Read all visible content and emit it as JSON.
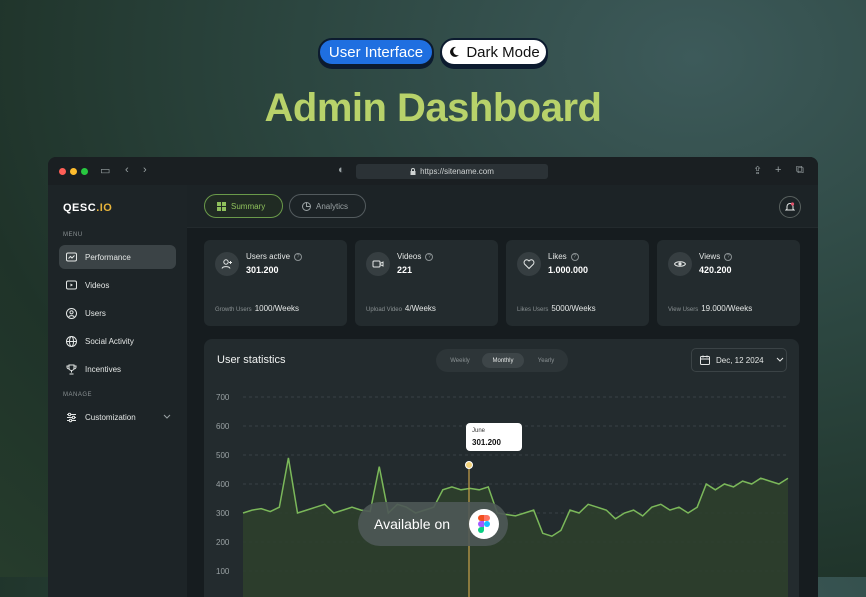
{
  "badges": {
    "ui": "User Interface",
    "dark": "Dark Mode"
  },
  "headline": "Admin Dashboard",
  "browser": {
    "url": "https://sitename.com"
  },
  "sidebar": {
    "logo_main": "QESC",
    "logo_accent": ".IO",
    "menu_label": "MENU",
    "manage_label": "MANAGE",
    "items": [
      {
        "label": "Performance",
        "icon": "chart-icon"
      },
      {
        "label": "Videos",
        "icon": "play-icon"
      },
      {
        "label": "Users",
        "icon": "user-icon"
      },
      {
        "label": "Social Activity",
        "icon": "globe-icon"
      },
      {
        "label": "Incentives",
        "icon": "trophy-icon"
      }
    ],
    "customization": "Customization"
  },
  "tabs": {
    "summary": "Summary",
    "analytics": "Analytics"
  },
  "cards": [
    {
      "title": "Users active",
      "value": "301.200",
      "foot_label": "Growth Users",
      "foot_value": "1000/Weeks"
    },
    {
      "title": "Videos",
      "value": "221",
      "foot_label": "Upload Video",
      "foot_value": "4/Weeks"
    },
    {
      "title": "Likes",
      "value": "1.000.000",
      "foot_label": "Likes Users",
      "foot_value": "5000/Weeks"
    },
    {
      "title": "Views",
      "value": "420.200",
      "foot_label": "View Users",
      "foot_value": "19.000/Weeks"
    }
  ],
  "stats": {
    "title": "User statistics",
    "periods": [
      "Weekly",
      "Monthly",
      "Yearly"
    ],
    "selected_period": "Monthly",
    "date": "Dec, 12 2024",
    "tooltip_month": "June",
    "tooltip_value": "301.200"
  },
  "chart_data": {
    "type": "area",
    "yticks": [
      "700",
      "600",
      "500",
      "400",
      "300",
      "200",
      "100"
    ],
    "ylim": [
      100,
      700
    ],
    "values": [
      300,
      310,
      315,
      305,
      320,
      490,
      300,
      310,
      320,
      330,
      300,
      310,
      320,
      310,
      305,
      460,
      300,
      330,
      320,
      300,
      310,
      320,
      380,
      390,
      380,
      385,
      380,
      390,
      300,
      295,
      290,
      300,
      310,
      230,
      220,
      240,
      310,
      300,
      330,
      320,
      310,
      280,
      300,
      310,
      290,
      320,
      330,
      310,
      320,
      300,
      320,
      400,
      380,
      400,
      390,
      410,
      400,
      420,
      410,
      400,
      420
    ],
    "highlight_index": 22,
    "color": "#7bb85a"
  },
  "overlay": {
    "available": "Available on"
  }
}
